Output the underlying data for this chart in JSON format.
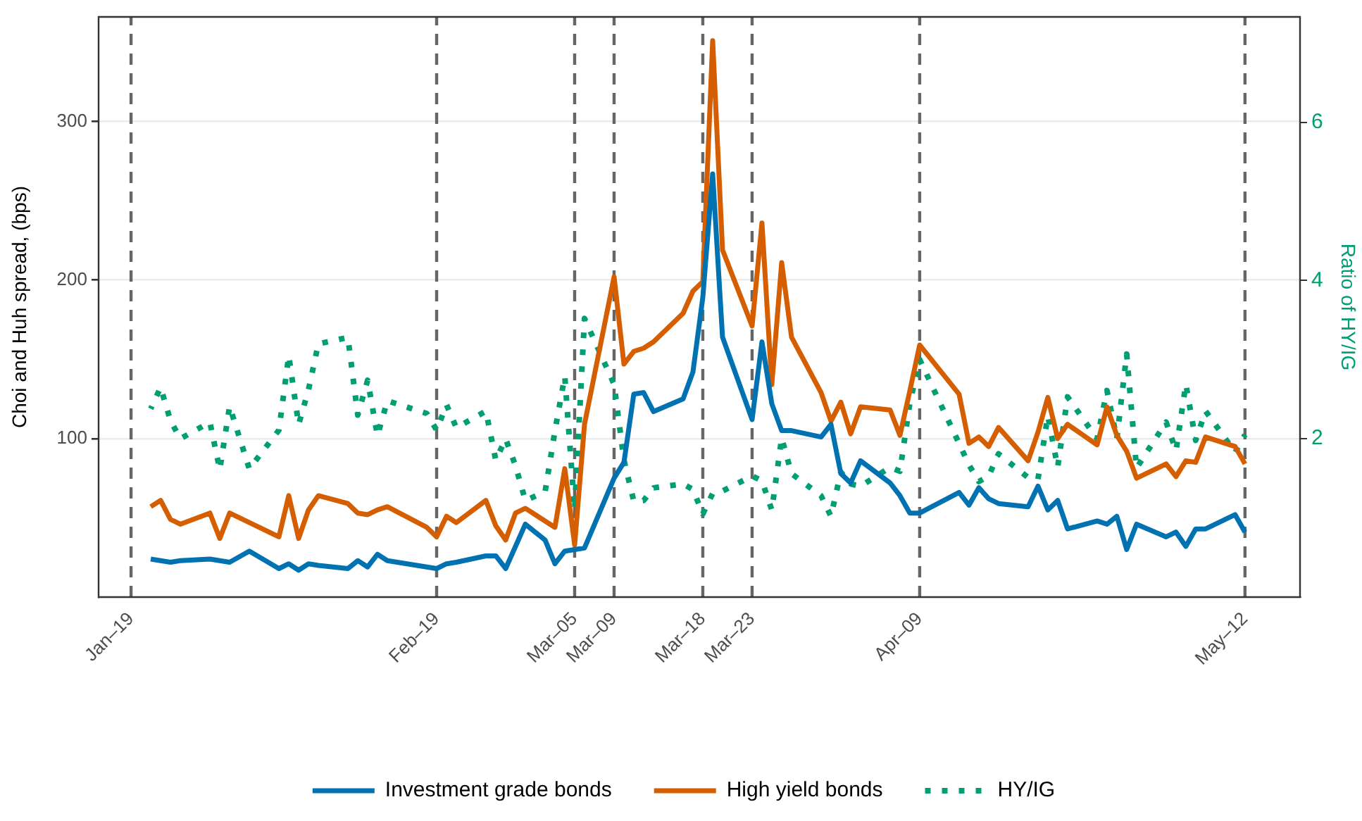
{
  "chart_data": {
    "type": "line",
    "ylabel": "Choi and Huh spread, (bps)",
    "y2label": "Ratio of HY/IG",
    "x": [
      "--01-21",
      "--01-22",
      "--01-23",
      "--01-24",
      "--01-27",
      "--01-28",
      "--01-29",
      "--01-31",
      "--02-03",
      "--02-04",
      "--02-05",
      "--02-06",
      "--02-07",
      "--02-10",
      "--02-11",
      "--02-12",
      "--02-13",
      "--02-14",
      "--02-18",
      "--02-19",
      "--02-20",
      "--02-21",
      "--02-24",
      "--02-25",
      "--02-26",
      "--02-27",
      "--02-28",
      "--03-02",
      "--03-03",
      "--03-04",
      "--03-05",
      "--03-06",
      "--03-09",
      "--03-10",
      "--03-11",
      "--03-12",
      "--03-13",
      "--03-16",
      "--03-17",
      "--03-18",
      "--03-19",
      "--03-20",
      "--03-23",
      "--03-24",
      "--03-25",
      "--03-26",
      "--03-27",
      "--03-30",
      "--03-31",
      "--04-01",
      "--04-02",
      "--04-03",
      "--04-06",
      "--04-07",
      "--04-08",
      "--04-09",
      "--04-13",
      "--04-14",
      "--04-15",
      "--04-16",
      "--04-17",
      "--04-20",
      "--04-21",
      "--04-22",
      "--04-23",
      "--04-24",
      "--04-27",
      "--04-28",
      "--04-29",
      "--04-30",
      "--05-01",
      "--05-04",
      "--05-05",
      "--05-06",
      "--05-07",
      "--05-08",
      "--05-11",
      "--05-12"
    ],
    "series": [
      {
        "name": "Investment grade bonds",
        "color": "#0072b2",
        "values": [
          24,
          23,
          22,
          23,
          24,
          23,
          22,
          29,
          18,
          21,
          17,
          21,
          20,
          18,
          23,
          19,
          27,
          23,
          19,
          18,
          21,
          22,
          26,
          26,
          18,
          32,
          46,
          36,
          21,
          29,
          30,
          31,
          75,
          85,
          128,
          129,
          117,
          125,
          142,
          189,
          267,
          164,
          112,
          161,
          122,
          105,
          105,
          101,
          109,
          78,
          72,
          86,
          72,
          64,
          53,
          53,
          66,
          58,
          69,
          62,
          59,
          57,
          70,
          55,
          61,
          43,
          48,
          46,
          51,
          30,
          46,
          38,
          41,
          32,
          43,
          43,
          52,
          41
        ]
      },
      {
        "name": "High yield bonds",
        "color": "#d55e00",
        "values": [
          57,
          61,
          49,
          46,
          53,
          37,
          53,
          47,
          38,
          64,
          37,
          55,
          64,
          59,
          53,
          52,
          55,
          57,
          44,
          38,
          51,
          47,
          61,
          45,
          36,
          53,
          56,
          48,
          44,
          81,
          33,
          109,
          202,
          147,
          155,
          157,
          161,
          179,
          193,
          199,
          351,
          219,
          171,
          236,
          134,
          211,
          164,
          129,
          111,
          123,
          103,
          120,
          118,
          102,
          130,
          159,
          128,
          97,
          101,
          95,
          107,
          86,
          104,
          126,
          100,
          109,
          96,
          120,
          102,
          92,
          75,
          84,
          76,
          86,
          85,
          101,
          95,
          84
        ]
      },
      {
        "name": "HY/IG",
        "color": "#009e73",
        "axis": "y2",
        "line_style": "dotted",
        "values": [
          2.38,
          2.65,
          2.23,
          2.0,
          2.21,
          1.61,
          2.41,
          1.62,
          2.11,
          3.05,
          2.18,
          2.62,
          3.2,
          3.28,
          2.3,
          2.74,
          2.04,
          2.48,
          2.32,
          2.11,
          2.43,
          2.14,
          2.35,
          1.73,
          2.0,
          1.66,
          1.22,
          1.33,
          2.1,
          2.79,
          1.1,
          3.52,
          2.69,
          1.73,
          1.21,
          1.22,
          1.38,
          1.43,
          1.36,
          1.05,
          1.31,
          1.34,
          1.53,
          1.47,
          1.1,
          2.01,
          1.56,
          1.28,
          1.02,
          1.58,
          1.43,
          1.4,
          1.64,
          1.59,
          2.45,
          3.0,
          1.94,
          1.67,
          1.46,
          1.53,
          1.81,
          1.51,
          1.49,
          2.29,
          1.64,
          2.53,
          2.0,
          2.61,
          2.0,
          3.07,
          1.63,
          2.21,
          1.85,
          2.69,
          1.98,
          2.35,
          1.83,
          2.05
        ]
      }
    ],
    "xlim": [
      "--01-15T17:00",
      "--05-17T14:00"
    ],
    "xticks": [
      {
        "value": "--01-19",
        "label": "Jan–19"
      },
      {
        "value": "--02-19",
        "label": "Feb–19"
      },
      {
        "value": "--03-05",
        "label": "Mar–05"
      },
      {
        "value": "--03-09",
        "label": "Mar–09"
      },
      {
        "value": "--03-18",
        "label": "Mar–18"
      },
      {
        "value": "--03-23",
        "label": "Mar–23"
      },
      {
        "value": "--04-09",
        "label": "Apr–09"
      },
      {
        "value": "--05-12",
        "label": "May–12"
      }
    ],
    "ylim": [
      0,
      366
    ],
    "yticks": [
      100,
      200,
      300
    ],
    "y2lim": [
      0,
      7.33
    ],
    "y2ticks": [
      2,
      4,
      6
    ],
    "ref_lines": [
      {
        "axis": "x",
        "value": "--01-19",
        "color": "#666666",
        "line_style": "dashed"
      },
      {
        "axis": "x",
        "value": "--02-19",
        "color": "#666666",
        "line_style": "dashed"
      },
      {
        "axis": "x",
        "value": "--03-05",
        "color": "#666666",
        "line_style": "dashed"
      },
      {
        "axis": "x",
        "value": "--03-09",
        "color": "#666666",
        "line_style": "dashed"
      },
      {
        "axis": "x",
        "value": "--03-18",
        "color": "#666666",
        "line_style": "dashed"
      },
      {
        "axis": "x",
        "value": "--03-23",
        "color": "#666666",
        "line_style": "dashed"
      },
      {
        "axis": "x",
        "value": "--04-09",
        "color": "#666666",
        "line_style": "dashed"
      },
      {
        "axis": "x",
        "value": "--05-12",
        "color": "#666666",
        "line_style": "dashed"
      }
    ],
    "grid": "y",
    "legend": "bottom",
    "marker": "none"
  }
}
